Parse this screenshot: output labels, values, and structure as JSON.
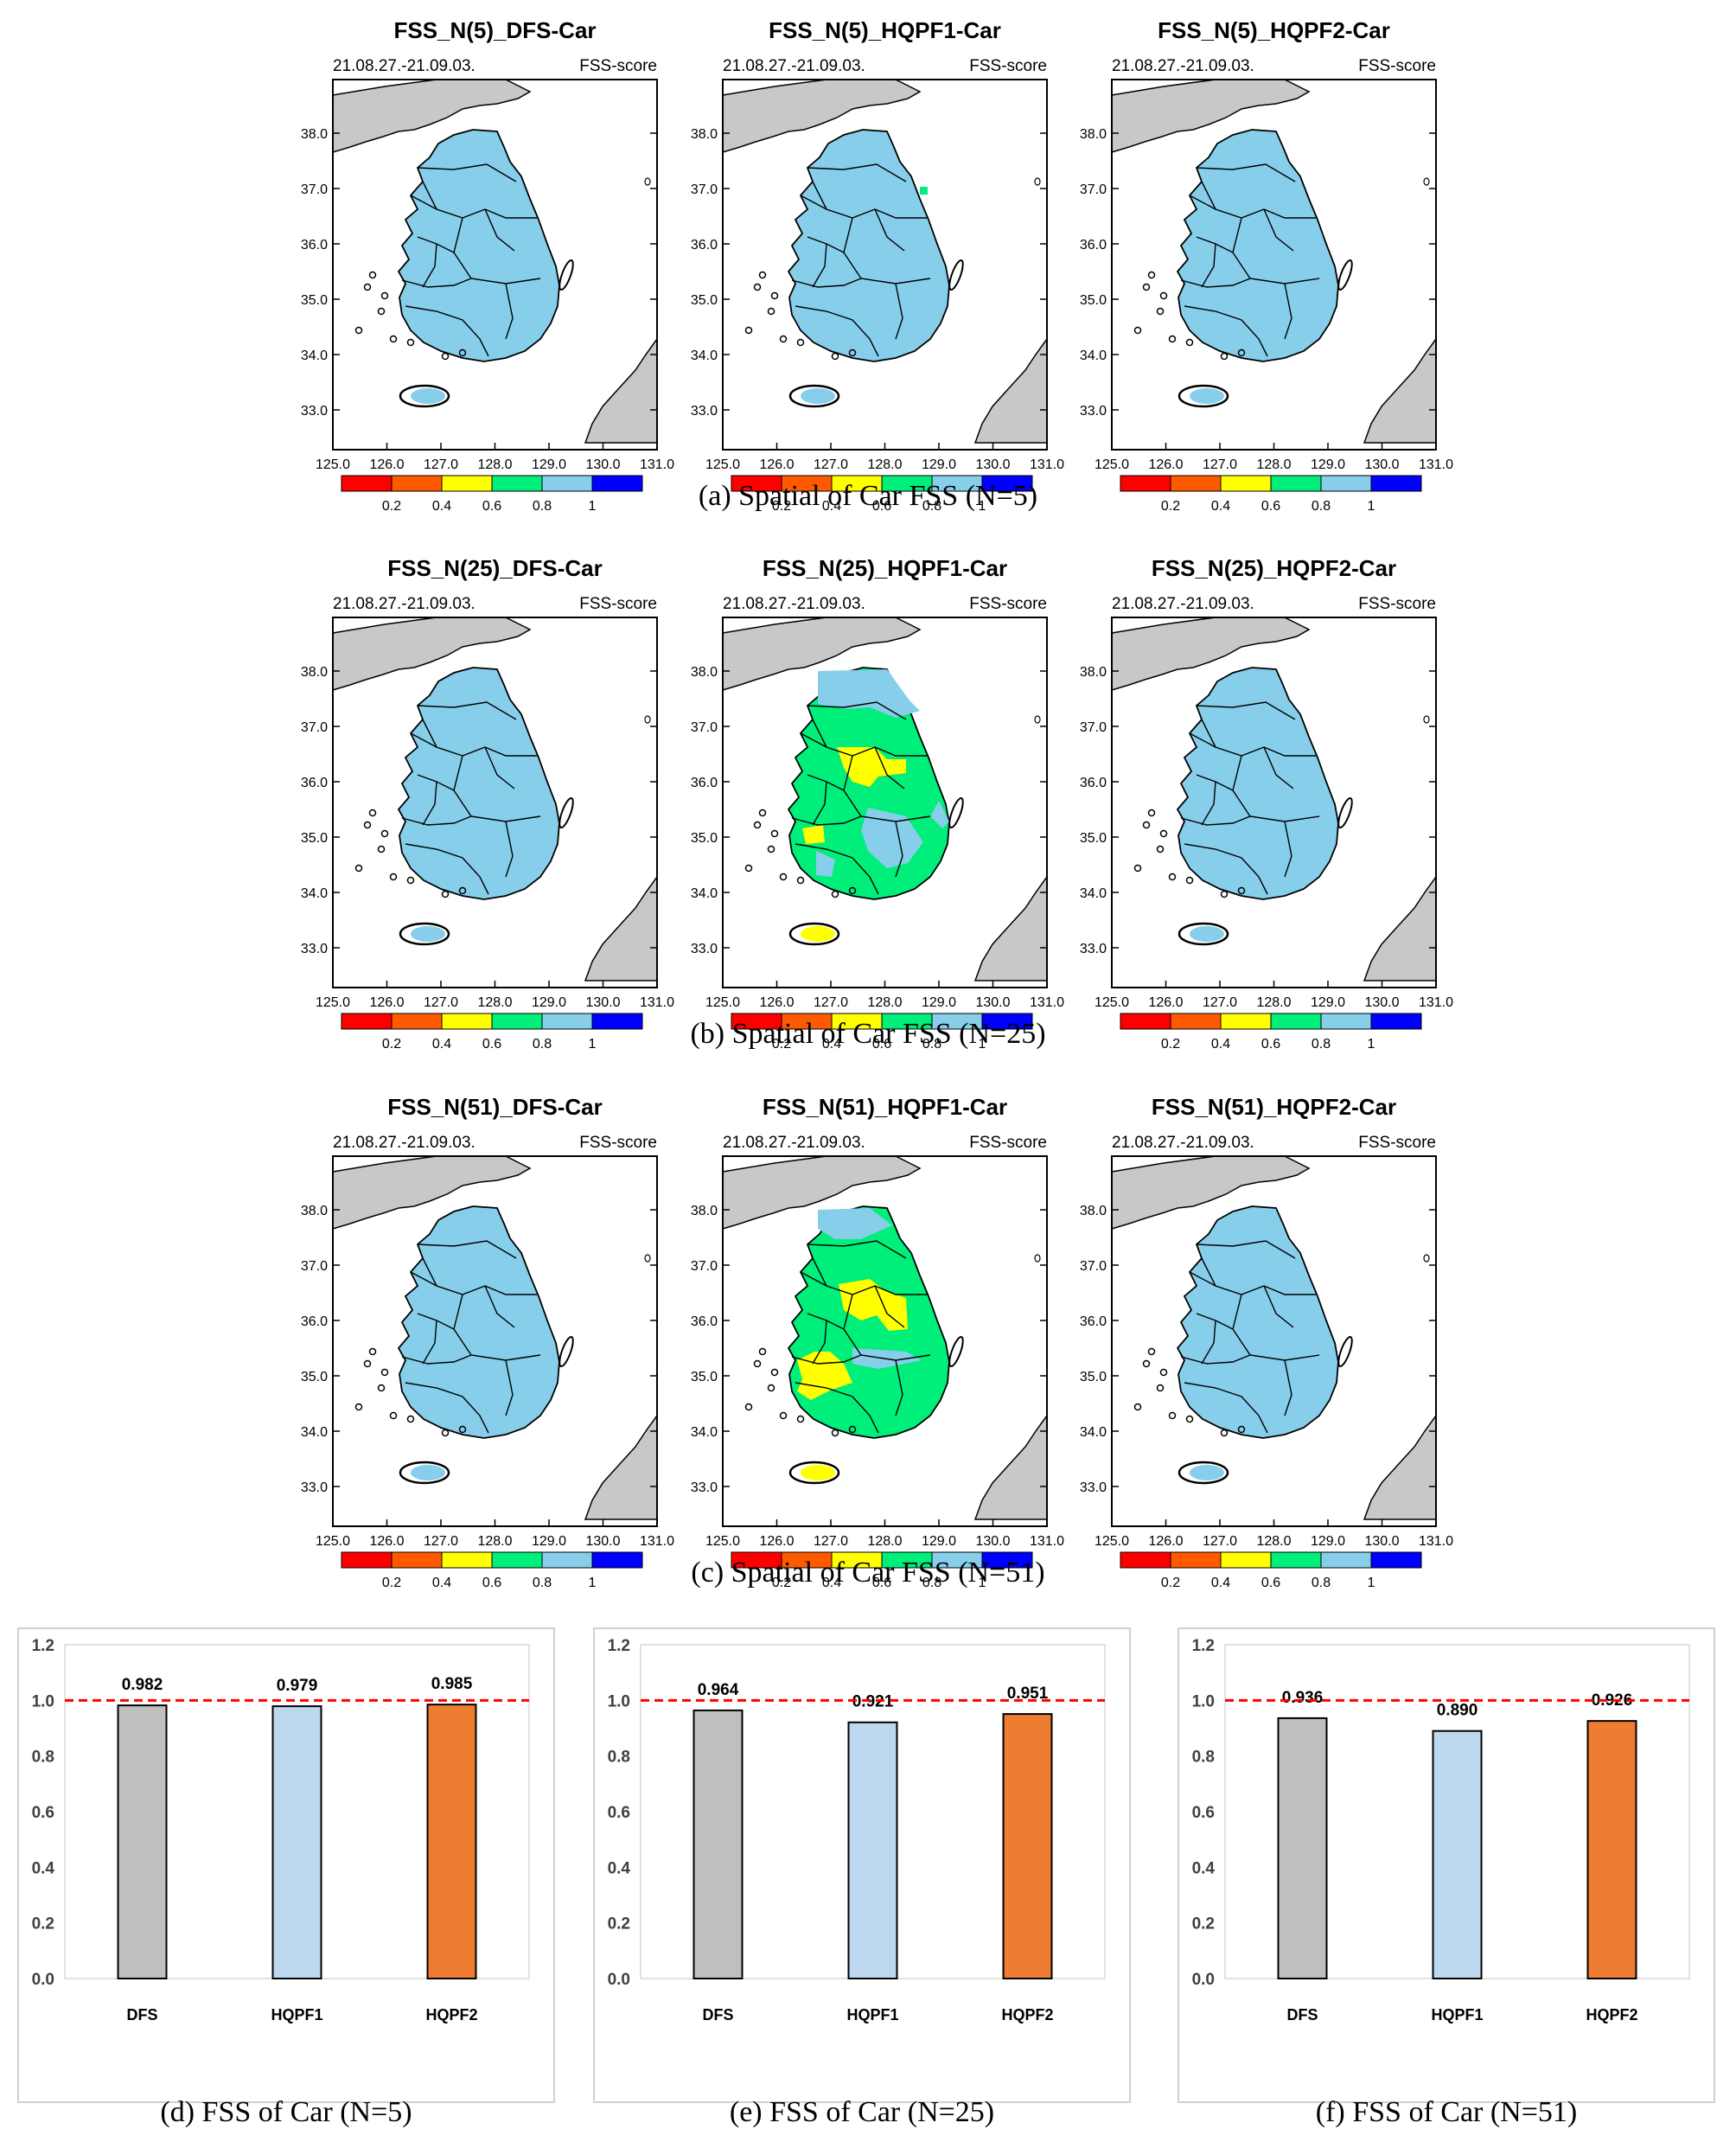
{
  "legend_colors": [
    "#ff0000",
    "#ff5a00",
    "#ffff00",
    "#00ee7a",
    "#87ceeb",
    "#0000ff"
  ],
  "colors": {
    "land": "#c8c8c8",
    "dfs": "#bfbfbf",
    "hqpf1": "#bdd7ee",
    "hqpf2": "#ed7d31",
    "ref": "#ff0000"
  },
  "maps": {
    "date": "21.08.27.-21.09.03.",
    "score_label": "FSS-score",
    "lat_ticks": [
      "38.0",
      "37.0",
      "36.0",
      "35.0",
      "34.0",
      "33.0"
    ],
    "lon_ticks": [
      "125.0",
      "126.0",
      "127.0",
      "128.0",
      "129.0",
      "130.0",
      "131.0"
    ],
    "legend_labels": [
      "0.2",
      "0.4",
      "0.6",
      "0.8",
      "1"
    ],
    "rows": [
      {
        "caption": "(a) Spatial of Car FSS (N=5)",
        "panels": [
          {
            "title": "FSS_N(5)_DFS-Car",
            "pattern": "blue"
          },
          {
            "title": "FSS_N(5)_HQPF1-Car",
            "pattern": "blue-dot"
          },
          {
            "title": "FSS_N(5)_HQPF2-Car",
            "pattern": "blue"
          }
        ]
      },
      {
        "caption": "(b) Spatial of Car FSS (N=25)",
        "panels": [
          {
            "title": "FSS_N(25)_DFS-Car",
            "pattern": "blue"
          },
          {
            "title": "FSS_N(25)_HQPF1-Car",
            "pattern": "green"
          },
          {
            "title": "FSS_N(25)_HQPF2-Car",
            "pattern": "blue"
          }
        ]
      },
      {
        "caption": "(c) Spatial of Car FSS (N=51)",
        "panels": [
          {
            "title": "FSS_N(51)_DFS-Car",
            "pattern": "blue"
          },
          {
            "title": "FSS_N(51)_HQPF1-Car",
            "pattern": "green-yellow"
          },
          {
            "title": "FSS_N(51)_HQPF2-Car",
            "pattern": "blue"
          }
        ]
      }
    ]
  },
  "chart_data": [
    {
      "type": "bar",
      "caption": "(d) FSS of Car (N=5)",
      "categories": [
        "DFS",
        "HQPF1",
        "HQPF2"
      ],
      "values": [
        0.982,
        0.979,
        0.985
      ],
      "labels": [
        "0.982",
        "0.979",
        "0.985"
      ],
      "ylim": [
        0,
        1.2
      ],
      "yticks": [
        "0.0",
        "0.2",
        "0.4",
        "0.6",
        "0.8",
        "1.0",
        "1.2"
      ],
      "reference_line": 1.0
    },
    {
      "type": "bar",
      "caption": "(e) FSS of Car (N=25)",
      "categories": [
        "DFS",
        "HQPF1",
        "HQPF2"
      ],
      "values": [
        0.964,
        0.921,
        0.951
      ],
      "labels": [
        "0.964",
        "0.921",
        "0.951"
      ],
      "ylim": [
        0,
        1.2
      ],
      "yticks": [
        "0.0",
        "0.2",
        "0.4",
        "0.6",
        "0.8",
        "1.0",
        "1.2"
      ],
      "reference_line": 1.0
    },
    {
      "type": "bar",
      "caption": "(f) FSS of Car (N=51)",
      "categories": [
        "DFS",
        "HQPF1",
        "HQPF2"
      ],
      "values": [
        0.936,
        0.89,
        0.926
      ],
      "labels": [
        "0.936",
        "0.890",
        "0.926"
      ],
      "ylim": [
        0,
        1.2
      ],
      "yticks": [
        "0.0",
        "0.2",
        "0.4",
        "0.6",
        "0.8",
        "1.0",
        "1.2"
      ],
      "reference_line": 1.0
    }
  ]
}
